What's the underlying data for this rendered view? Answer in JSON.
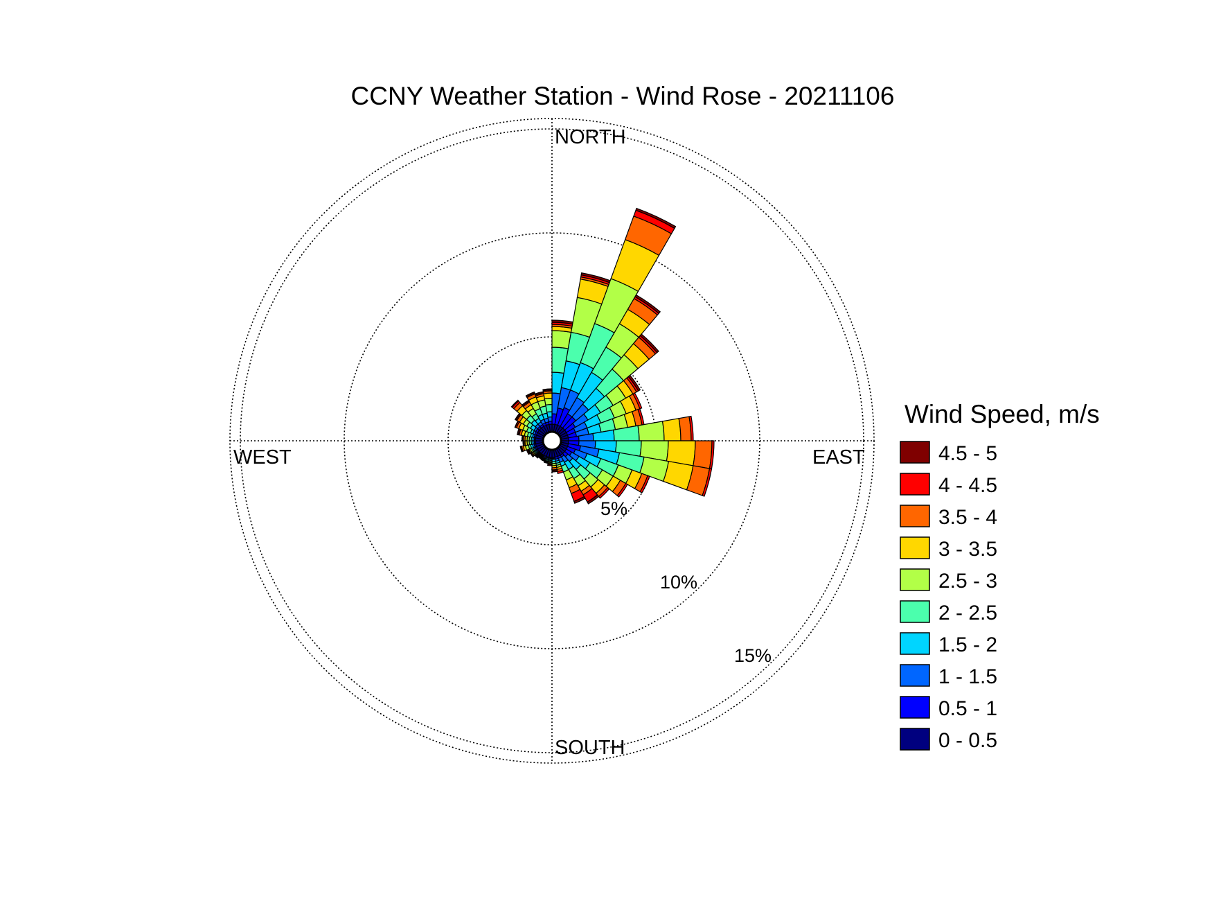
{
  "chart_data": {
    "type": "wind-rose",
    "title": "CCNY Weather Station - Wind Rose - 20211106",
    "direction_labels": {
      "north": "NORTH",
      "east": "EAST",
      "south": "SOUTH",
      "west": "WEST"
    },
    "frequency_unit": "percent",
    "ring_values": [
      5,
      10,
      15
    ],
    "ring_labels": [
      "5%",
      "10%",
      "15%"
    ],
    "legend": {
      "title": "Wind Speed, m/s",
      "placement": "right"
    },
    "speed_bins": [
      {
        "label": "0 - 0.5",
        "color": "#00007f"
      },
      {
        "label": "0.5 - 1",
        "color": "#0000ff"
      },
      {
        "label": "1 - 1.5",
        "color": "#0066ff"
      },
      {
        "label": "1.5 - 2",
        "color": "#00d5ff"
      },
      {
        "label": "2 - 2.5",
        "color": "#4bffad"
      },
      {
        "label": "2.5 - 3",
        "color": "#b2ff47"
      },
      {
        "label": "3 - 3.5",
        "color": "#ffd700"
      },
      {
        "label": "3.5 - 4",
        "color": "#ff6600"
      },
      {
        "label": "4 - 4.5",
        "color": "#ff0000"
      },
      {
        "label": "4.5 - 5",
        "color": "#7f0000"
      }
    ],
    "sector_width_deg": 10,
    "sectors": [
      {
        "direction": 5,
        "cumulative": [
          0.8,
          1.3,
          2.3,
          3.3,
          4.5,
          5.3,
          5.5,
          5.6,
          5.7,
          5.8
        ]
      },
      {
        "direction": 15,
        "cumulative": [
          0.8,
          1.6,
          2.6,
          3.9,
          5.3,
          7.0,
          7.9,
          8.0,
          8.1,
          8.2
        ]
      },
      {
        "direction": 25,
        "cumulative": [
          0.8,
          1.7,
          2.6,
          4.0,
          6.0,
          8.3,
          10.3,
          11.5,
          11.8,
          11.9
        ]
      },
      {
        "direction": 35,
        "cumulative": [
          0.8,
          1.5,
          2.4,
          3.8,
          5.2,
          6.5,
          7.3,
          7.9,
          8.0,
          8.1
        ]
      },
      {
        "direction": 45,
        "cumulative": [
          0.8,
          1.5,
          2.3,
          3.3,
          4.5,
          5.4,
          6.1,
          6.5,
          6.6,
          6.7
        ]
      },
      {
        "direction": 55,
        "cumulative": [
          0.8,
          1.3,
          2.0,
          2.7,
          3.4,
          4.1,
          4.5,
          4.7,
          4.8,
          4.9
        ]
      },
      {
        "direction": 65,
        "cumulative": [
          0.8,
          1.2,
          1.8,
          2.5,
          3.2,
          3.8,
          4.3,
          4.5,
          4.6,
          4.6
        ]
      },
      {
        "direction": 75,
        "cumulative": [
          0.8,
          1.2,
          1.8,
          2.4,
          3.1,
          3.7,
          4.1,
          4.4,
          4.5,
          4.5
        ]
      },
      {
        "direction": 85,
        "cumulative": [
          0.8,
          1.3,
          2.0,
          3.0,
          4.2,
          5.4,
          6.2,
          6.7,
          6.8,
          6.8
        ]
      },
      {
        "direction": 95,
        "cumulative": [
          0.8,
          1.3,
          2.1,
          3.1,
          4.3,
          5.6,
          6.9,
          7.7,
          7.8,
          7.8
        ]
      },
      {
        "direction": 105,
        "cumulative": [
          0.8,
          1.4,
          2.3,
          3.3,
          4.5,
          5.7,
          6.9,
          7.7,
          7.8,
          7.8
        ]
      },
      {
        "direction": 115,
        "cumulative": [
          0.8,
          1.2,
          1.8,
          2.5,
          3.4,
          4.1,
          4.6,
          4.9,
          5.0,
          5.0
        ]
      },
      {
        "direction": 125,
        "cumulative": [
          0.8,
          1.1,
          1.5,
          2.1,
          2.8,
          3.4,
          3.8,
          4.1,
          4.2,
          4.2
        ]
      },
      {
        "direction": 135,
        "cumulative": [
          0.8,
          1.0,
          1.3,
          1.8,
          2.4,
          2.9,
          3.3,
          3.5,
          3.6,
          3.6
        ]
      },
      {
        "direction": 145,
        "cumulative": [
          0.8,
          0.9,
          1.2,
          1.6,
          2.1,
          2.5,
          2.8,
          3.0,
          3.4,
          3.5
        ]
      },
      {
        "direction": 155,
        "cumulative": [
          0.8,
          0.9,
          1.1,
          1.3,
          1.6,
          2.0,
          2.4,
          2.7,
          3.1,
          3.2
        ]
      },
      {
        "direction": 165,
        "cumulative": [
          0.8,
          0.9,
          1.0,
          1.1,
          1.2,
          1.3,
          1.4,
          1.5,
          1.6,
          1.6
        ]
      },
      {
        "direction": 175,
        "cumulative": [
          0.8,
          0.85,
          0.9,
          1.0,
          1.1,
          1.2,
          1.3,
          1.4,
          1.45,
          1.5
        ]
      },
      {
        "direction": 185,
        "cumulative": [
          0.8,
          0.85,
          0.9,
          0.95,
          1.0,
          1.05,
          1.1,
          1.15,
          1.2,
          1.2
        ]
      },
      {
        "direction": 195,
        "cumulative": [
          0.8,
          0.85,
          0.9,
          0.95,
          1.0,
          1.02,
          1.04,
          1.06,
          1.08,
          1.1
        ]
      },
      {
        "direction": 205,
        "cumulative": [
          0.8,
          0.85,
          0.9,
          0.93,
          0.96,
          0.98,
          1.0,
          1.02,
          1.04,
          1.05
        ]
      },
      {
        "direction": 215,
        "cumulative": [
          0.8,
          0.84,
          0.88,
          0.92,
          0.95,
          0.97,
          0.99,
          1.0,
          1.01,
          1.02
        ]
      },
      {
        "direction": 225,
        "cumulative": [
          0.8,
          0.84,
          0.88,
          0.92,
          0.96,
          0.99,
          1.02,
          1.05,
          1.07,
          1.08
        ]
      },
      {
        "direction": 235,
        "cumulative": [
          0.8,
          0.85,
          0.9,
          0.95,
          1.0,
          1.05,
          1.1,
          1.15,
          1.18,
          1.2
        ]
      },
      {
        "direction": 245,
        "cumulative": [
          0.8,
          0.86,
          0.92,
          0.98,
          1.05,
          1.12,
          1.18,
          1.22,
          1.25,
          1.3
        ]
      },
      {
        "direction": 255,
        "cumulative": [
          0.8,
          0.87,
          0.95,
          1.05,
          1.15,
          1.3,
          1.4,
          1.48,
          1.52,
          1.55
        ]
      },
      {
        "direction": 265,
        "cumulative": [
          0.8,
          0.85,
          0.92,
          1.0,
          1.1,
          1.2,
          1.3,
          1.35,
          1.38,
          1.4
        ]
      },
      {
        "direction": 275,
        "cumulative": [
          0.8,
          0.85,
          0.92,
          1.0,
          1.1,
          1.2,
          1.3,
          1.38,
          1.42,
          1.45
        ]
      },
      {
        "direction": 285,
        "cumulative": [
          0.8,
          0.87,
          0.95,
          1.05,
          1.2,
          1.35,
          1.5,
          1.6,
          1.65,
          1.7
        ]
      },
      {
        "direction": 295,
        "cumulative": [
          0.8,
          0.88,
          0.98,
          1.1,
          1.3,
          1.5,
          1.7,
          1.82,
          1.88,
          1.9
        ]
      },
      {
        "direction": 305,
        "cumulative": [
          0.8,
          0.9,
          1.0,
          1.2,
          1.4,
          1.6,
          1.8,
          1.95,
          2.0,
          2.05
        ]
      },
      {
        "direction": 315,
        "cumulative": [
          0.8,
          0.9,
          1.05,
          1.3,
          1.6,
          1.9,
          2.2,
          2.4,
          2.5,
          2.55
        ]
      },
      {
        "direction": 325,
        "cumulative": [
          0.8,
          0.9,
          1.05,
          1.25,
          1.5,
          1.8,
          2.0,
          2.15,
          2.2,
          2.25
        ]
      },
      {
        "direction": 335,
        "cumulative": [
          0.8,
          0.92,
          1.1,
          1.35,
          1.65,
          2.0,
          2.25,
          2.4,
          2.45,
          2.5
        ]
      },
      {
        "direction": 345,
        "cumulative": [
          0.8,
          0.92,
          1.1,
          1.35,
          1.7,
          2.0,
          2.2,
          2.3,
          2.35,
          2.4
        ]
      },
      {
        "direction": 355,
        "cumulative": [
          0.8,
          0.95,
          1.15,
          1.4,
          1.75,
          2.05,
          2.3,
          2.4,
          2.45,
          2.5
        ]
      }
    ]
  }
}
